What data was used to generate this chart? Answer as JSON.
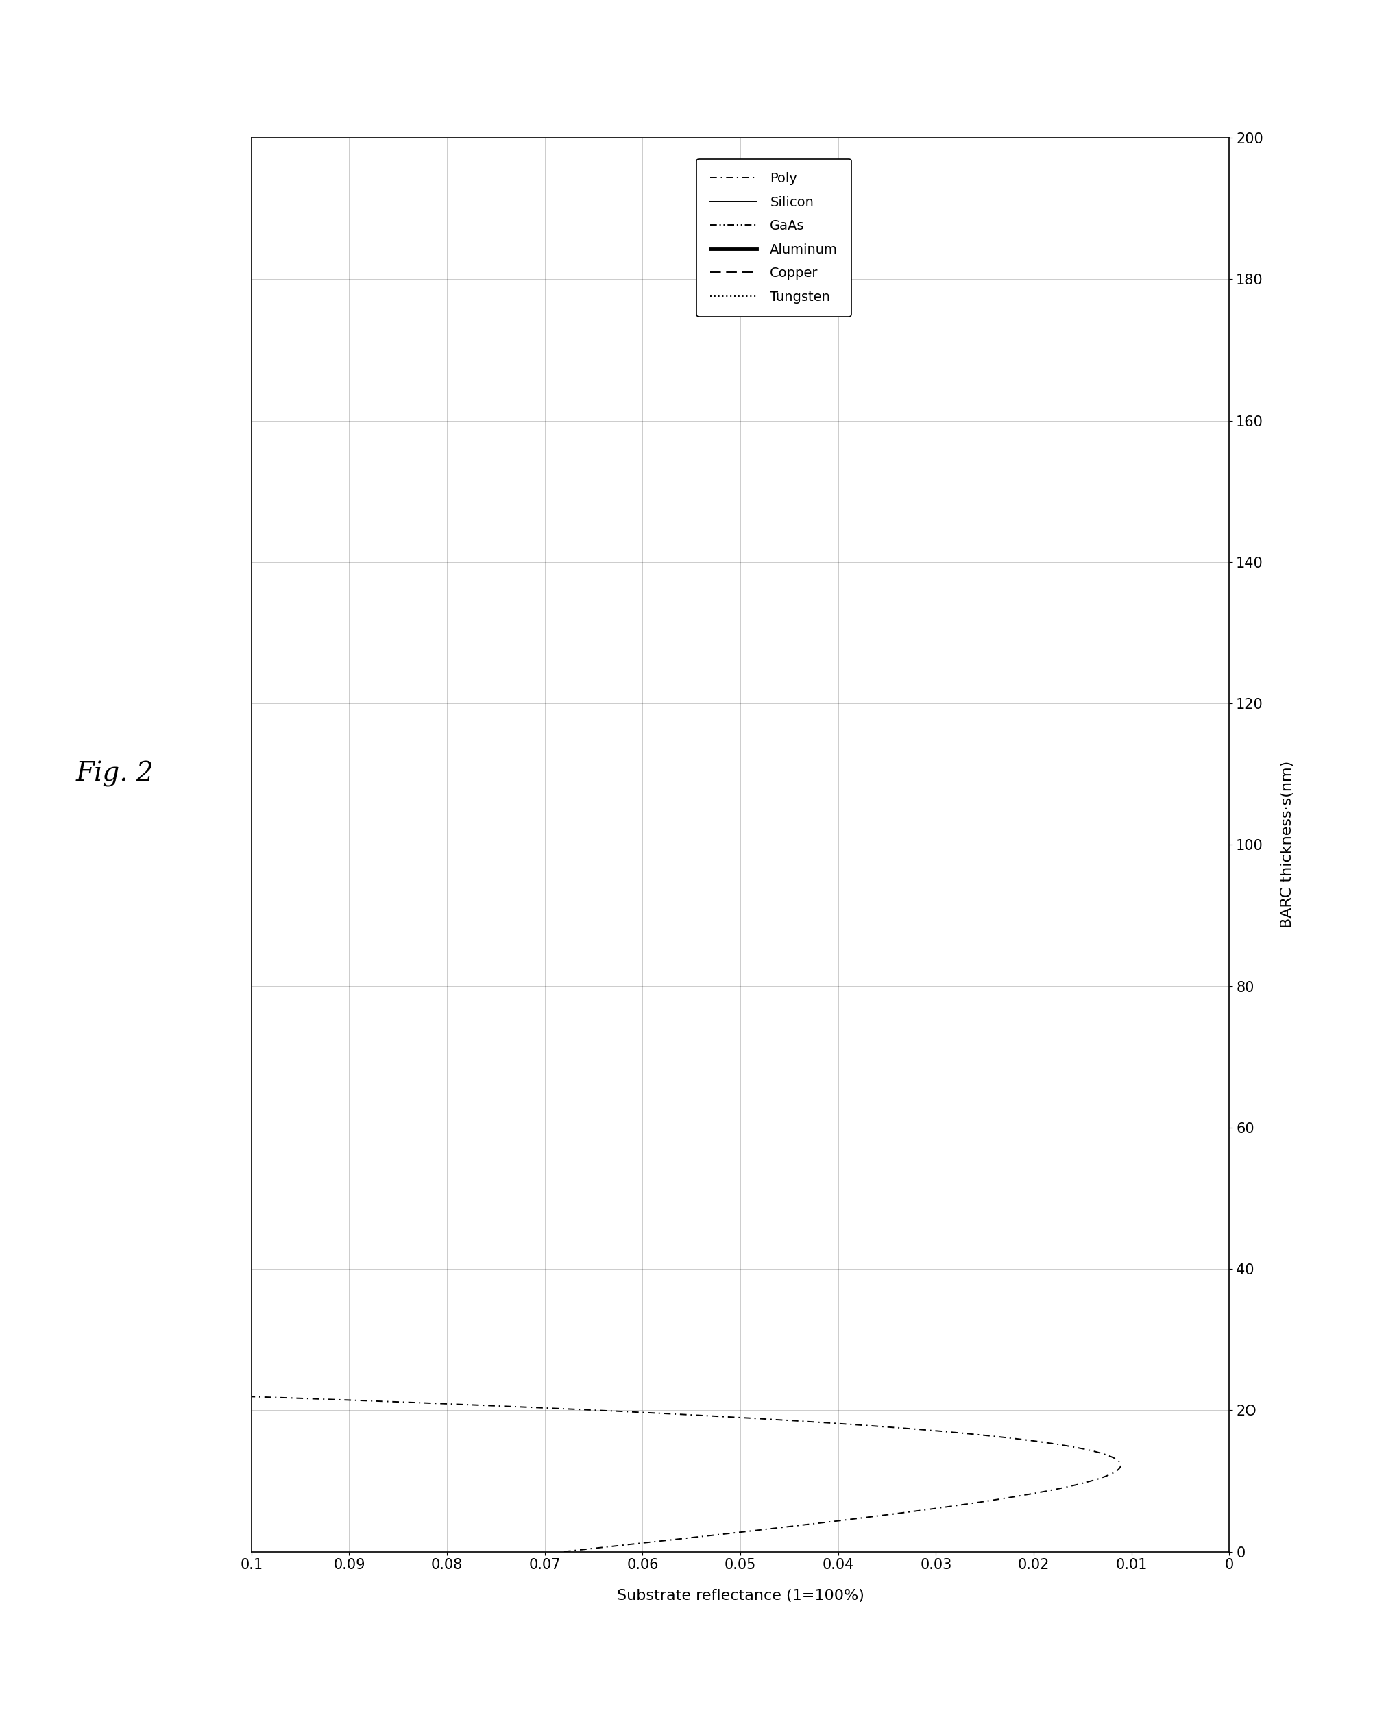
{
  "title": "Fig. 2",
  "xlabel_rotated": "Substrate reflectance (1=100%)",
  "ylabel_rotated": "BARC thickness·s(nm)",
  "x_range": [
    0.1,
    0
  ],
  "y_range": [
    0,
    200
  ],
  "x_ticks": [
    0.1,
    0.09,
    0.08,
    0.07,
    0.06,
    0.05,
    0.04,
    0.03,
    0.02,
    0.01,
    0
  ],
  "x_tick_labels": [
    "0.1",
    "0.09",
    "0.08",
    "0.07",
    "0.06",
    "0.05",
    "0.04",
    "0.03",
    "0.02",
    "0.01",
    "0"
  ],
  "y_ticks": [
    0,
    20,
    40,
    60,
    80,
    100,
    120,
    140,
    160,
    180,
    200
  ],
  "y_tick_labels": [
    "0",
    "2O",
    "40",
    "60",
    "80",
    "100",
    "120",
    "140",
    "160",
    "180",
    "200"
  ],
  "background_color": "#ffffff",
  "legend_labels": [
    "Poly",
    "Silicon",
    "GaAs",
    "Aluminum",
    "Copper",
    "Tungsten"
  ],
  "n_barc": 1.65,
  "k_barc": 0.62,
  "wavelength": 248,
  "substrates": {
    "Poly": {
      "n": 1.7,
      "k": 0.08
    },
    "Silicon": {
      "n": 1.67,
      "k": 3.58
    },
    "GaAs": {
      "n": 3.8,
      "k": 1.95
    },
    "Aluminum": {
      "n": 0.18,
      "k": 2.82
    },
    "Copper": {
      "n": 1.22,
      "k": 1.9
    },
    "Tungsten": {
      "n": 3.45,
      "k": 2.85
    }
  }
}
